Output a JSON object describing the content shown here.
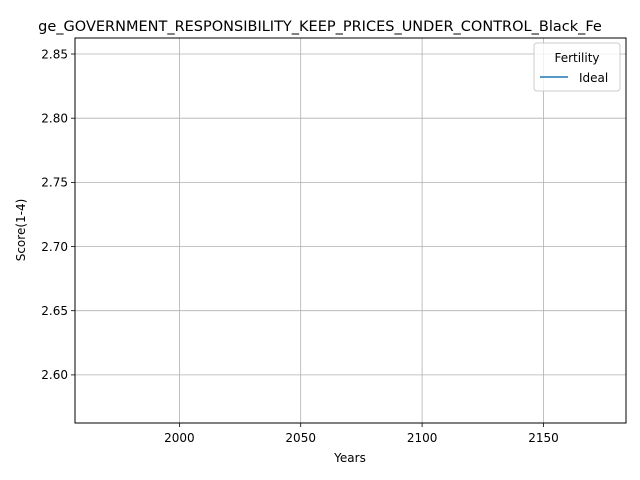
{
  "chart_data": {
    "type": "line",
    "title": "ge_GOVERNMENT_RESPONSIBILITY_KEEP_PRICES_UNDER_CONTROL_Black_Fe",
    "xlabel": "Years",
    "ylabel": "Score(1-4)",
    "xlim": [
      1957,
      2184
    ],
    "ylim": [
      2.5625,
      2.8625
    ],
    "x_ticks": [
      2000,
      2050,
      2100,
      2150
    ],
    "x_tick_labels": [
      "2000",
      "2050",
      "2100",
      "2150"
    ],
    "y_ticks": [
      2.6,
      2.65,
      2.7,
      2.75,
      2.8,
      2.85
    ],
    "y_tick_labels": [
      "2.60",
      "2.65",
      "2.70",
      "2.75",
      "2.80",
      "2.85"
    ],
    "grid": true,
    "legend": {
      "title": "Fertility",
      "placement": "top-right",
      "entries": [
        {
          "label": "Ideal",
          "color": "#1f77b4"
        }
      ]
    },
    "series": [
      {
        "name": "Ideal",
        "color": "#1f77b4",
        "x": [],
        "y": []
      }
    ]
  }
}
